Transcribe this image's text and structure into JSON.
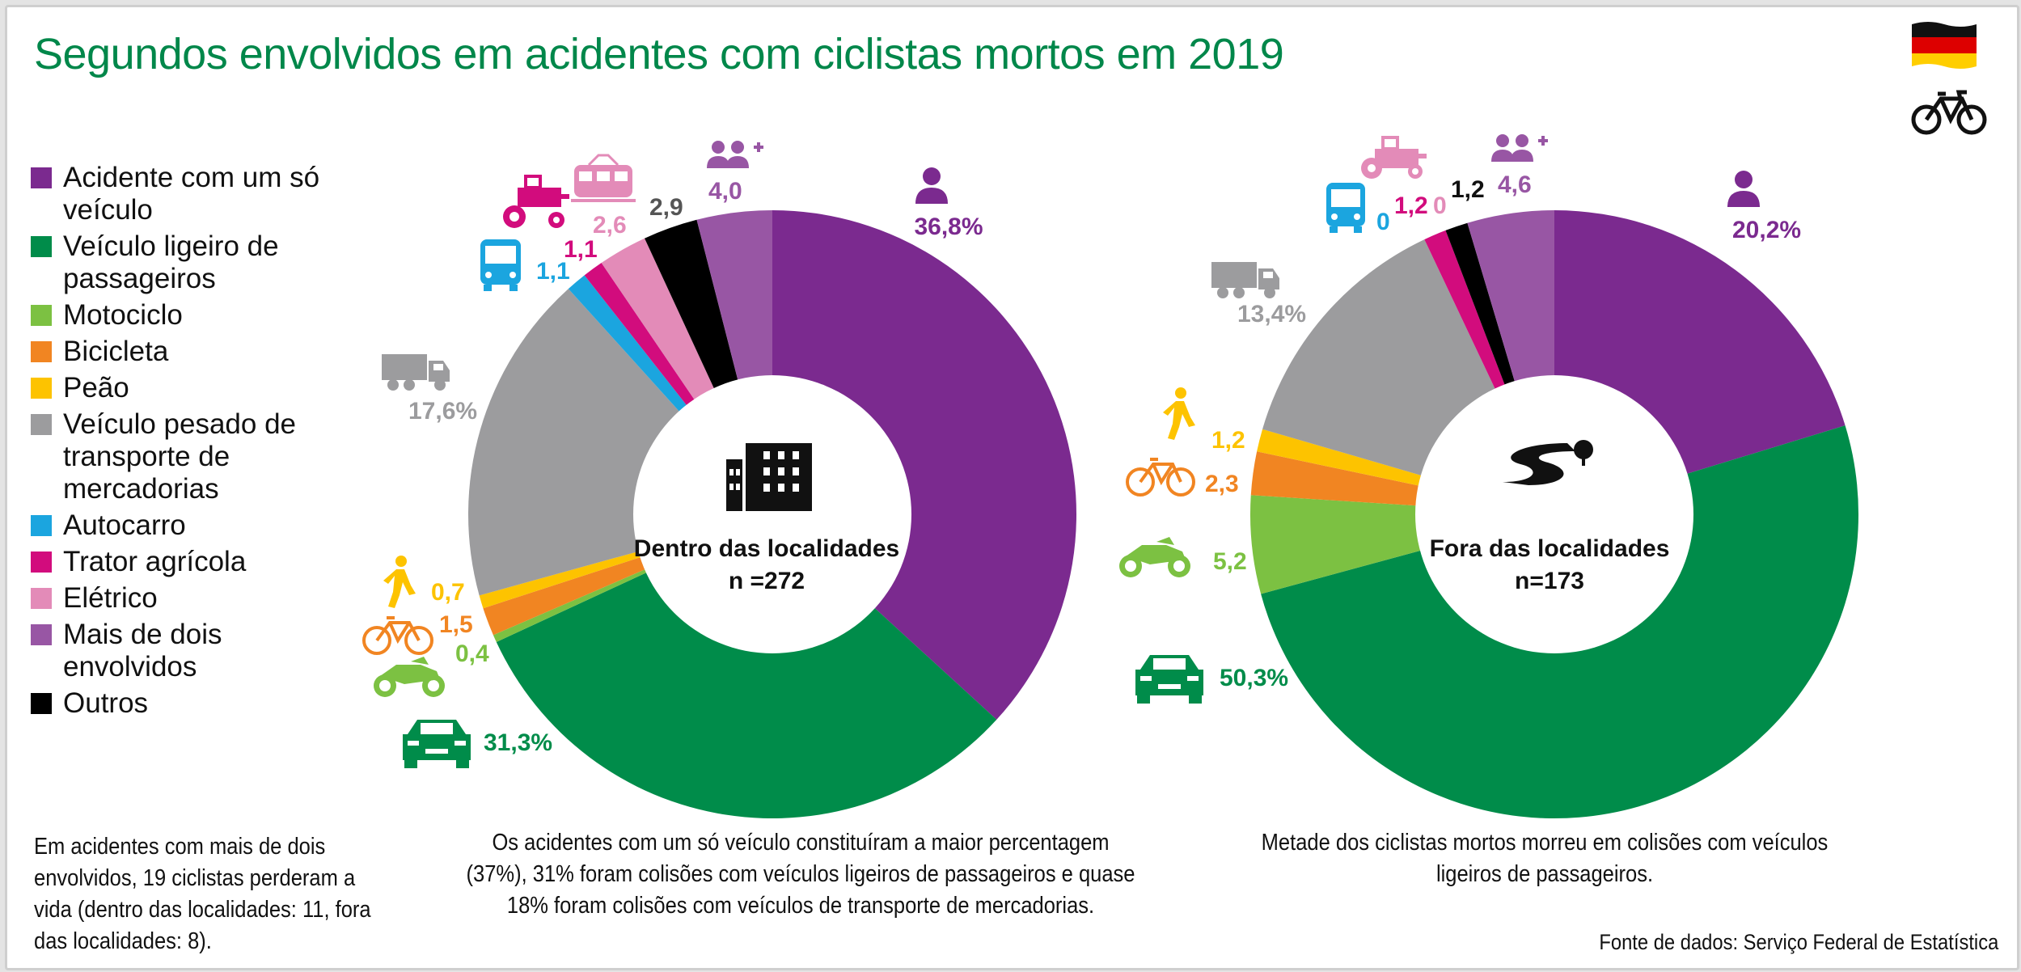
{
  "title": "Segundos envolvidos em acidentes com ciclistas mortos em 2019",
  "legend": [
    {
      "key": "single",
      "label": "Acidente com um só veículo",
      "color": "#7b2a8f"
    },
    {
      "key": "car",
      "label": "Veículo ligeiro de passageiros",
      "color": "#008c4a"
    },
    {
      "key": "moto",
      "label": "Motociclo",
      "color": "#7cc142"
    },
    {
      "key": "bike",
      "label": "Bicicleta",
      "color": "#f18522"
    },
    {
      "key": "ped",
      "label": "Peão",
      "color": "#fdc300"
    },
    {
      "key": "truck",
      "label": "Veículo pesado de transporte de mercadorias",
      "color": "#9c9c9e"
    },
    {
      "key": "bus",
      "label": "Autocarro",
      "color": "#1ba5df"
    },
    {
      "key": "tractor",
      "label": "Trator agrícola",
      "color": "#d20c7d"
    },
    {
      "key": "train",
      "label": "Elétrico",
      "color": "#e38bb8"
    },
    {
      "key": "multi",
      "label": "Mais de dois envolvidos",
      "color": "#9856a4"
    },
    {
      "key": "other",
      "label": "Outros",
      "color": "#000000"
    }
  ],
  "chart_data": [
    {
      "type": "pie",
      "title": "Dentro das localidades",
      "n_label": "n =272",
      "categories": [
        "Acidente com um só veículo",
        "Veículo ligeiro de passageiros",
        "Motociclo",
        "Bicicleta",
        "Peão",
        "Veículo pesado de transporte de mercadorias",
        "Autocarro",
        "Trator agrícola",
        "Elétrico",
        "Outros",
        "Mais de dois envolvidos"
      ],
      "keys": [
        "single",
        "car",
        "moto",
        "bike",
        "ped",
        "truck",
        "bus",
        "tractor",
        "train",
        "other",
        "multi"
      ],
      "values": [
        36.8,
        31.3,
        0.4,
        1.5,
        0.7,
        17.6,
        1.1,
        1.1,
        2.6,
        2.9,
        4.0
      ],
      "value_labels": [
        "36,8%",
        "31,3%",
        "0,4",
        "1,5",
        "0,7",
        "17,6%",
        "1,1",
        "1,1",
        "2,6",
        "2,9",
        "4,0"
      ]
    },
    {
      "type": "pie",
      "title": "Fora das localidades",
      "n_label": "n=173",
      "categories": [
        "Acidente com um só veículo",
        "Veículo ligeiro de passageiros",
        "Motociclo",
        "Bicicleta",
        "Peão",
        "Veículo pesado de transporte de mercadorias",
        "Autocarro",
        "Trator agrícola",
        "Elétrico",
        "Outros",
        "Mais de dois envolvidos"
      ],
      "keys": [
        "single",
        "car",
        "moto",
        "bike",
        "ped",
        "truck",
        "bus",
        "tractor",
        "train",
        "other",
        "multi"
      ],
      "values": [
        20.2,
        50.3,
        5.2,
        2.3,
        1.2,
        13.4,
        0,
        1.2,
        0,
        1.2,
        4.6
      ],
      "value_labels": [
        "20,2%",
        "50,3%",
        "5,2",
        "2,3",
        "1,2",
        "13,4%",
        "0",
        "1,2",
        "0",
        "1,2",
        "4,6"
      ]
    }
  ],
  "notes": {
    "left": "Em acidentes com mais de dois envolvidos, 19 ciclistas perderam a vida (dentro das localidades: 11, fora das localidades: 8).",
    "middle": "Os acidentes com um só veículo constituíram a maior percentagem (37%), 31% foram colisões com veículos ligeiros de passageiros e quase 18% foram colisões com veículos de transporte de mercadorias.",
    "right": "Metade dos ciclistas mortos morreu em colisões com veículos ligeiros de passageiros."
  },
  "source": "Fonte de dados: Serviço Federal de Estatística",
  "icons": [
    "germany-flag-icon",
    "bicycle-icon",
    "person-icon",
    "people-plus-icon",
    "truck-icon",
    "bus-icon",
    "tractor-icon",
    "train-icon",
    "pedestrian-icon",
    "bicycle-icon",
    "motorcycle-icon",
    "car-icon",
    "building-icon",
    "road-icon"
  ]
}
